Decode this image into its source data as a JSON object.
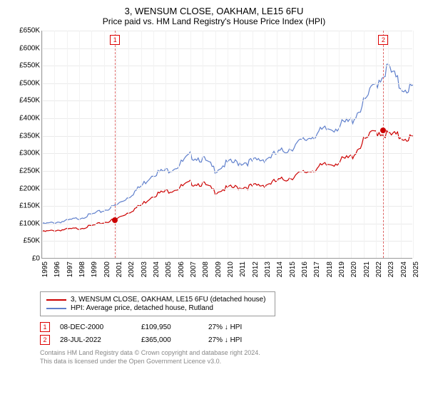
{
  "title": "3, WENSUM CLOSE, OAKHAM, LE15 6FU",
  "subtitle": "Price paid vs. HM Land Registry's House Price Index (HPI)",
  "chart": {
    "type": "line",
    "background_color": "#ffffff",
    "grid_color": "#eaeaea",
    "axis_color": "#999999",
    "ylim": [
      0,
      650
    ],
    "ytick_step": 50,
    "y_tick_labels": [
      "£0",
      "£50K",
      "£100K",
      "£150K",
      "£200K",
      "£250K",
      "£300K",
      "£350K",
      "£400K",
      "£450K",
      "£500K",
      "£550K",
      "£600K",
      "£650K"
    ],
    "x_years": [
      1995,
      1996,
      1997,
      1998,
      1999,
      2000,
      2001,
      2002,
      2003,
      2004,
      2005,
      2006,
      2007,
      2008,
      2009,
      2010,
      2011,
      2012,
      2013,
      2014,
      2015,
      2016,
      2017,
      2018,
      2019,
      2020,
      2021,
      2022,
      2023,
      2024,
      2025
    ],
    "line_width": 1.2,
    "font_size_tick": 10,
    "series": [
      {
        "key": "property",
        "color": "#cc0000",
        "values": [
          78,
          82,
          85,
          88,
          95,
          105,
          115,
          135,
          155,
          185,
          195,
          205,
          220,
          218,
          195,
          205,
          208,
          210,
          215,
          225,
          235,
          248,
          260,
          272,
          282,
          295,
          340,
          372,
          360,
          355,
          350
        ]
      },
      {
        "key": "hpi",
        "color": "#6080cc",
        "values": [
          100,
          105,
          110,
          118,
          128,
          140,
          155,
          180,
          210,
          248,
          255,
          270,
          300,
          290,
          258,
          278,
          280,
          282,
          290,
          305,
          320,
          340,
          360,
          375,
          385,
          400,
          450,
          510,
          555,
          500,
          495
        ]
      }
    ],
    "vlines": [
      {
        "year": 2000.9,
        "marker": "1",
        "color": "#dd6666"
      },
      {
        "year": 2022.6,
        "marker": "2",
        "color": "#dd6666"
      }
    ],
    "dots": [
      {
        "year": 2000.9,
        "value": 110,
        "color": "#cc0000"
      },
      {
        "year": 2022.6,
        "value": 365,
        "color": "#cc0000"
      }
    ]
  },
  "legend": {
    "rows": [
      {
        "color": "#cc0000",
        "label": "3, WENSUM CLOSE, OAKHAM, LE15 6FU (detached house)"
      },
      {
        "color": "#6080cc",
        "label": "HPI: Average price, detached house, Rutland"
      }
    ]
  },
  "events": [
    {
      "marker": "1",
      "date": "08-DEC-2000",
      "price": "£109,950",
      "pct": "27% ↓ HPI"
    },
    {
      "marker": "2",
      "date": "28-JUL-2022",
      "price": "£365,000",
      "pct": "27% ↓ HPI"
    }
  ],
  "footer1": "Contains HM Land Registry data © Crown copyright and database right 2024.",
  "footer2": "This data is licensed under the Open Government Licence v3.0."
}
